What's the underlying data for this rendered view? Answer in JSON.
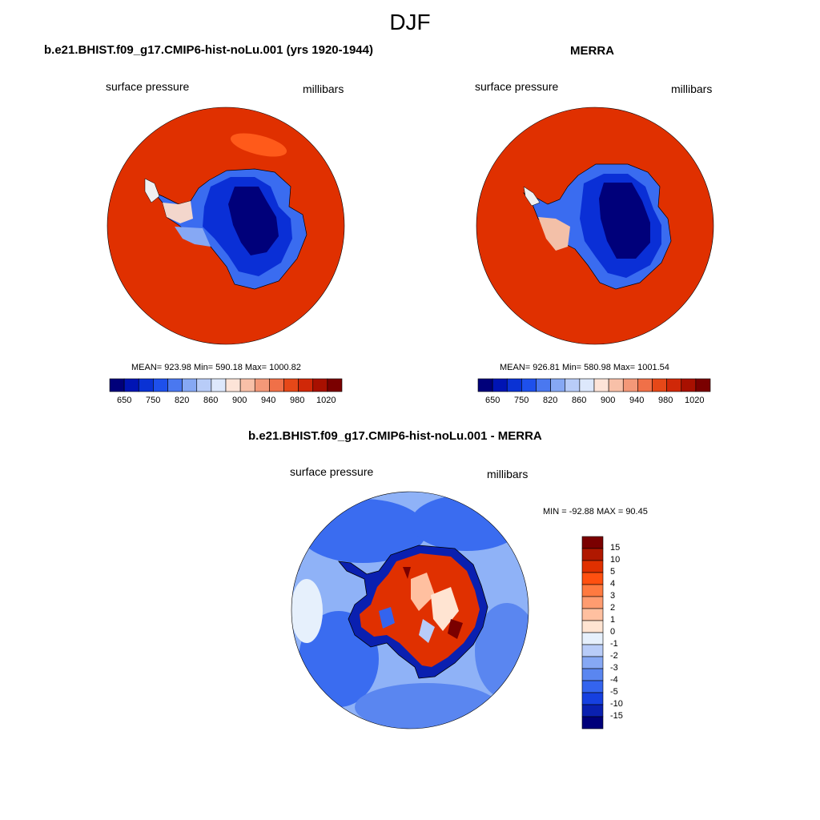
{
  "figure_title": "DJF",
  "colors": {
    "ocean_high": "#e03000",
    "ocean_high_light": "#ff5a1a",
    "land_deep": "#00007a",
    "land_mid": "#0a2fd6",
    "land_light": "#3a6cf0",
    "diff_ocean": "#3a6cf0",
    "diff_ocean_light": "#8fb2f7",
    "coast_line": "#000000"
  },
  "panels": {
    "model": {
      "title": "b.e21.BHIST.f09_g17.CMIP6-hist-noLu.001 (yrs 1920-1944)",
      "variable": "surface pressure",
      "units": "millibars",
      "stats": "MEAN= 923.98  Min= 590.18  Max= 1000.82",
      "colorbar_ticks": [
        "650",
        "750",
        "820",
        "860",
        "900",
        "940",
        "980",
        "1020"
      ]
    },
    "obs": {
      "title": "MERRA",
      "variable": "surface pressure",
      "units": "millibars",
      "stats": "MEAN= 926.81  Min= 580.98  Max= 1001.54",
      "colorbar_ticks": [
        "650",
        "750",
        "820",
        "860",
        "900",
        "940",
        "980",
        "1020"
      ]
    },
    "diff": {
      "title": "b.e21.BHIST.f09_g17.CMIP6-hist-noLu.001 - MERRA",
      "variable": "surface pressure",
      "units": "millibars",
      "stats": "MIN = -92.88 MAX =  90.45",
      "colorbar_ticks": [
        "15",
        "10",
        "5",
        "4",
        "3",
        "2",
        "1",
        "0",
        "-1",
        "-2",
        "-3",
        "-4",
        "-5",
        "-10",
        "-15"
      ]
    }
  },
  "abs_colorbar_colors": [
    "#00007a",
    "#0014b4",
    "#0a32d4",
    "#1e50ec",
    "#4a78f0",
    "#86a8f4",
    "#b8ccf8",
    "#dde8fc",
    "#fde4d8",
    "#f8c0a8",
    "#f49878",
    "#f07048",
    "#e64818",
    "#d02808",
    "#a81000",
    "#7a0000"
  ],
  "diff_colorbar_colors": [
    "#7a0000",
    "#b01800",
    "#e03000",
    "#ff5010",
    "#ff7a40",
    "#ff9c70",
    "#ffc0a0",
    "#ffe4d2",
    "#e6f0fc",
    "#b8ccf8",
    "#86a8f4",
    "#5a86f0",
    "#3464ee",
    "#1640e0",
    "#0a20b0",
    "#00007a"
  ]
}
